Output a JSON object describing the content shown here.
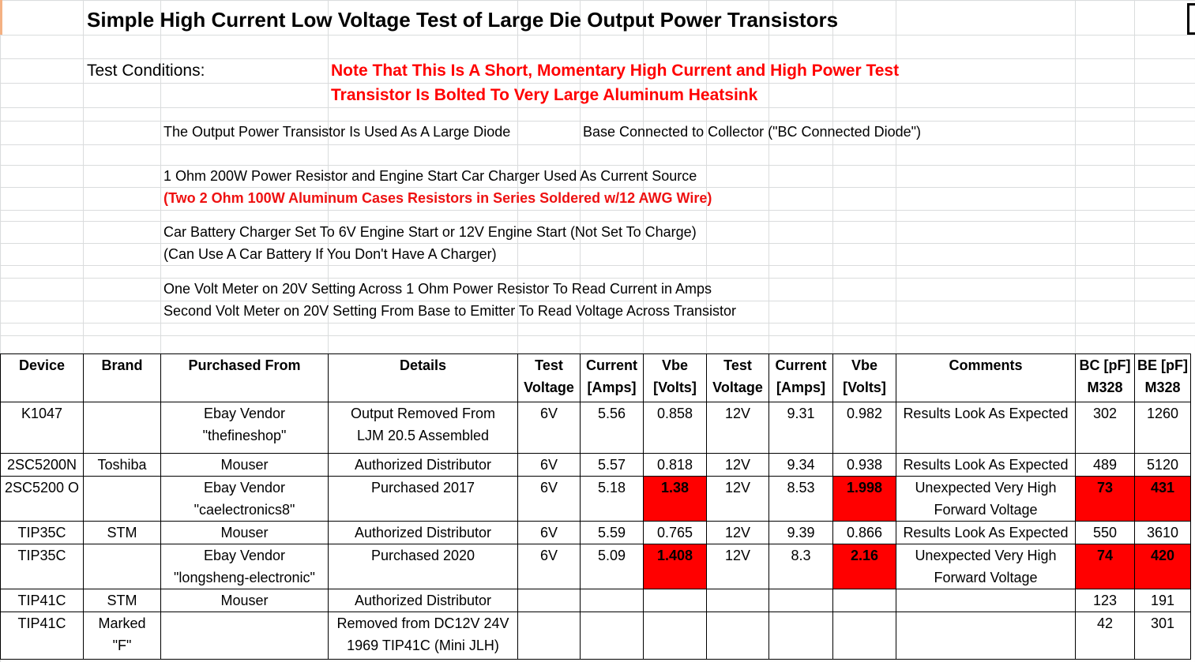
{
  "title": "Simple High Current Low Voltage Test of Large Die Output Power Transistors",
  "conditions_label": "Test Conditions:",
  "notes": {
    "note1": "Note That This Is A Short, Momentary High Current and High Power Test",
    "note2": "Transistor Is Bolted To Very Large Aluminum Heatsink"
  },
  "setup": {
    "line1a": "The Output Power Transistor Is Used As  A Large Diode",
    "line1b": "Base Connected to Collector (\"BC Connected Diode\")",
    "line2": "1 Ohm 200W Power Resistor and Engine Start Car Charger Used As Current Source",
    "line3": "(Two 2 Ohm 100W Aluminum Cases Resistors in Series Soldered w/12 AWG Wire)",
    "line4": "Car Battery Charger Set To 6V Engine Start or 12V Engine Start (Not Set To Charge)",
    "line5": "(Can Use A Car Battery If You Don't Have A Charger)",
    "line6": "One Volt Meter on 20V Setting Across 1 Ohm Power Resistor To Read Current in Amps",
    "line7": "Second Volt Meter on 20V Setting From Base to Emitter To Read Voltage Across Transistor"
  },
  "headers": {
    "device": "Device",
    "brand": "Brand",
    "purchased": "Purchased From",
    "details": "Details",
    "test_voltage_1": "Test",
    "test_voltage_2": "Voltage",
    "current_1": "Current",
    "current_2": "[Amps]",
    "vbe_1": "Vbe",
    "vbe_2": "[Volts]",
    "test2_voltage_1": "Test",
    "test2_voltage_2": "Voltage",
    "current2_1": "Current",
    "current2_2": "[Amps]",
    "vbe2_1": "Vbe",
    "vbe2_2": "[Volts]",
    "comments": "Comments",
    "bc_1": "BC [pF]",
    "bc_2": "M328",
    "be_1": "BE [pF]",
    "be_2": "M328"
  },
  "rows": [
    {
      "device": "K1047",
      "brand": "",
      "purch1": "Ebay Vendor",
      "purch2": "\"thefineshop\"",
      "det1": "Output Removed From",
      "det2": "LJM 20.5 Assembled",
      "tv1": "6V",
      "cur1": "5.56",
      "vbe1": "0.858",
      "tv2": "12V",
      "cur2": "9.31",
      "vbe2": "0.982",
      "com1": "Results Look As Expected",
      "com2": "",
      "bc": "302",
      "be": "1260"
    },
    {
      "device": "2SC5200N",
      "brand": "Toshiba",
      "purch1": "Mouser",
      "purch2": "",
      "det1": "Authorized Distributor",
      "det2": "",
      "tv1": "6V",
      "cur1": "5.57",
      "vbe1": "0.818",
      "tv2": "12V",
      "cur2": "9.34",
      "vbe2": "0.938",
      "com1": "Results Look As Expected",
      "com2": "",
      "bc": "489",
      "be": "5120"
    },
    {
      "device": "2SC5200 O",
      "brand": "",
      "purch1": "Ebay Vendor",
      "purch2": "\"caelectronics8\"",
      "det1": "Purchased 2017",
      "det2": "",
      "tv1": "6V",
      "cur1": "5.18",
      "vbe1": "1.38",
      "tv2": "12V",
      "cur2": "8.53",
      "vbe2": "1.998",
      "com1": "Unexpected Very High",
      "com2": "Forward Voltage",
      "bc": "73",
      "be": "431"
    },
    {
      "device": "TIP35C",
      "brand": "STM",
      "purch1": "Mouser",
      "purch2": "",
      "det1": "Authorized Distributor",
      "det2": "",
      "tv1": "6V",
      "cur1": "5.59",
      "vbe1": "0.765",
      "tv2": "12V",
      "cur2": "9.39",
      "vbe2": "0.866",
      "com1": "Results Look As Expected",
      "com2": "",
      "bc": "550",
      "be": "3610"
    },
    {
      "device": "TIP35C",
      "brand": "",
      "purch1": "Ebay Vendor",
      "purch2": "\"longsheng-electronic\"",
      "det1": "Purchased 2020",
      "det2": "",
      "tv1": "6V",
      "cur1": "5.09",
      "vbe1": "1.408",
      "tv2": "12V",
      "cur2": "8.3",
      "vbe2": "2.16",
      "com1": "Unexpected Very High",
      "com2": "Forward Voltage",
      "bc": "74",
      "be": "420"
    },
    {
      "device": "TIP41C",
      "brand": "STM",
      "purch1": "Mouser",
      "purch2": "",
      "det1": "Authorized Distributor",
      "det2": "",
      "tv1": "",
      "cur1": "",
      "vbe1": "",
      "tv2": "",
      "cur2": "",
      "vbe2": "",
      "com1": "",
      "com2": "",
      "bc": "123",
      "be": "191"
    },
    {
      "device": "TIP41C",
      "brand": "Marked",
      "brand2": "\"F\"",
      "purch1": "",
      "purch2": "",
      "det1": "Removed from DC12V 24V",
      "det2": "1969 TIP41C (Mini JLH)",
      "tv1": "",
      "cur1": "",
      "vbe1": "",
      "tv2": "",
      "cur2": "",
      "vbe2": "",
      "com1": "",
      "com2": "",
      "bc": "42",
      "be": "301"
    }
  ],
  "colors": {
    "highlight": "#ff0000",
    "note_text": "#ff0000",
    "grid": "#dadcdd"
  }
}
